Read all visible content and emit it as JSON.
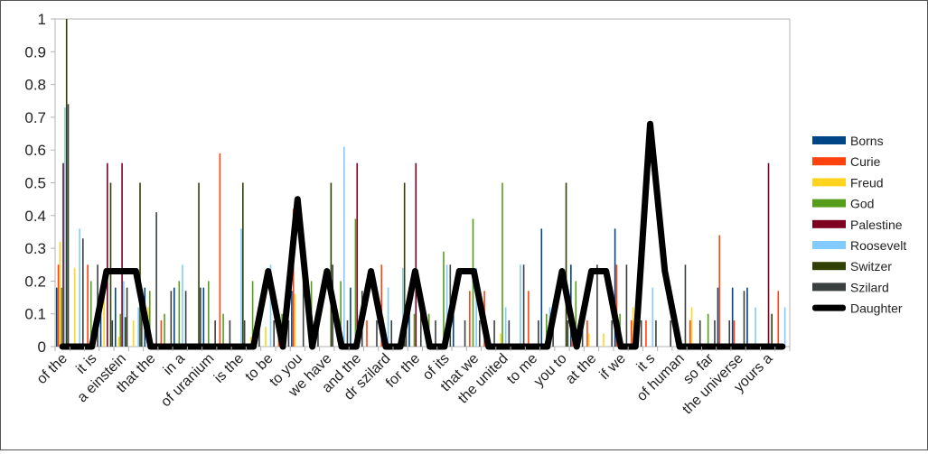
{
  "chart_data": {
    "type": "bar",
    "title": "",
    "xlabel": "",
    "ylabel": "",
    "ylim": [
      0,
      1
    ],
    "yticks": [
      "0",
      "0.1",
      "0.2",
      "0.3",
      "0.4",
      "0.5",
      "0.6",
      "0.7",
      "0.8",
      "0.9",
      "1"
    ],
    "grid": false,
    "legend_position": "right",
    "category_count": 50,
    "x_tick_labels": [
      "of the",
      "it is",
      "a einstein",
      "that the",
      "in a",
      "of uranium",
      "is the",
      "to be",
      "to you",
      "we have",
      "and the",
      "dr szilard",
      "for the",
      "of its",
      "that we",
      "the united",
      "to me",
      "you to",
      "at the",
      "if we",
      "it s",
      "of human",
      "so far",
      "the universe",
      "yours a"
    ],
    "series": [
      {
        "name": "Borns",
        "color": "#004586",
        "values": [
          0.18,
          0,
          0,
          0.17,
          0.18,
          0,
          0.18,
          0,
          0.18,
          0,
          0.18,
          0,
          0,
          0,
          0,
          0,
          0.17,
          0,
          0,
          0,
          0.18,
          0,
          0,
          0,
          0.18,
          0,
          0,
          0.18,
          0,
          0,
          0,
          0,
          0,
          0.36,
          0,
          0.25,
          0,
          0,
          0.36,
          0,
          0,
          0,
          0,
          0,
          0,
          0.18,
          0.18,
          0.18,
          0,
          0
        ]
      },
      {
        "name": "Curie",
        "color": "#ff420e",
        "values": [
          0.25,
          0,
          0.25,
          0,
          0,
          0,
          0,
          0.08,
          0,
          0,
          0,
          0.59,
          0,
          0,
          0,
          0.08,
          0.42,
          0,
          0,
          0,
          0,
          0.08,
          0.25,
          0,
          0,
          0,
          0,
          0,
          0.17,
          0.17,
          0,
          0,
          0.17,
          0,
          0,
          0.08,
          0.08,
          0,
          0.25,
          0.08,
          0.08,
          0,
          0,
          0.08,
          0,
          0.34,
          0.08,
          0,
          0,
          0.17
        ]
      },
      {
        "name": "Freud",
        "color": "#ffd320",
        "values": [
          0.32,
          0.24,
          0,
          0.2,
          0.03,
          0.08,
          0.12,
          0,
          0,
          0,
          0,
          0,
          0,
          0.03,
          0.06,
          0.04,
          0.16,
          0,
          0,
          0.08,
          0,
          0,
          0.09,
          0,
          0,
          0.08,
          0,
          0,
          0,
          0,
          0.04,
          0,
          0,
          0,
          0,
          0,
          0.04,
          0.04,
          0,
          0.12,
          0,
          0,
          0.04,
          0.12,
          0,
          0,
          0,
          0,
          0,
          0
        ]
      },
      {
        "name": "God",
        "color": "#579d1c",
        "values": [
          0.18,
          0,
          0.2,
          0,
          0.1,
          0,
          0.17,
          0.1,
          0.2,
          0,
          0.2,
          0.1,
          0,
          0.2,
          0,
          0.1,
          0,
          0.2,
          0,
          0.2,
          0.39,
          0,
          0,
          0,
          0.1,
          0.1,
          0.29,
          0,
          0.39,
          0,
          0.5,
          0,
          0,
          0.1,
          0,
          0.2,
          0,
          0,
          0.1,
          0,
          0,
          0,
          0,
          0,
          0.1,
          0,
          0,
          0,
          0,
          0
        ]
      },
      {
        "name": "Palestine",
        "color": "#7e0021",
        "values": [
          0.56,
          0,
          0,
          0.56,
          0.56,
          0,
          0,
          0,
          0,
          0,
          0,
          0,
          0,
          0,
          0,
          0,
          0,
          0,
          0,
          0,
          0.56,
          0,
          0,
          0,
          0.56,
          0,
          0,
          0,
          0,
          0,
          0,
          0,
          0,
          0,
          0,
          0,
          0,
          0,
          0,
          0,
          0,
          0,
          0,
          0,
          0,
          0,
          0,
          0,
          0.56,
          0
        ]
      },
      {
        "name": "Roosevelt",
        "color": "#83caff",
        "values": [
          0.73,
          0.36,
          0,
          0,
          0.2,
          0.12,
          0,
          0,
          0.25,
          0,
          0,
          0,
          0.36,
          0,
          0.25,
          0,
          0,
          0,
          0,
          0.61,
          0,
          0,
          0.18,
          0.24,
          0,
          0,
          0.25,
          0,
          0.24,
          0,
          0.12,
          0.25,
          0,
          0.12,
          0,
          0,
          0,
          0,
          0,
          0,
          0.18,
          0,
          0,
          0,
          0,
          0,
          0,
          0.12,
          0,
          0.12
        ]
      },
      {
        "name": "Switzer",
        "color": "#314004",
        "values": [
          1.0,
          0,
          0,
          0.5,
          0.09,
          0.5,
          0,
          0,
          0,
          0.5,
          0,
          0,
          0.5,
          0,
          0,
          0,
          0,
          0,
          0.5,
          0,
          0,
          0,
          0,
          0.5,
          0,
          0,
          0,
          0,
          0,
          0,
          0,
          0,
          0,
          0,
          0.5,
          0,
          0,
          0,
          0,
          0,
          0,
          0,
          0,
          0,
          0,
          0,
          0,
          0,
          0.1,
          0
        ]
      },
      {
        "name": "Szilard",
        "color": "#3a3f3f",
        "values": [
          0.74,
          0.33,
          0.25,
          0.08,
          0.18,
          0.17,
          0.41,
          0.17,
          0.17,
          0.18,
          0.08,
          0.08,
          0.08,
          0.08,
          0.08,
          0.08,
          0.25,
          0.08,
          0.25,
          0.08,
          0.17,
          0.08,
          0.08,
          0.08,
          0.17,
          0.08,
          0.25,
          0.08,
          0.08,
          0.08,
          0.08,
          0.25,
          0.08,
          0.08,
          0.08,
          0.08,
          0.25,
          0.08,
          0.25,
          0.08,
          0.08,
          0.08,
          0.25,
          0.08,
          0.08,
          0.08,
          0.17,
          0,
          0,
          0
        ]
      },
      {
        "name": "Daughter",
        "type": "line",
        "color": "#000000",
        "values": [
          0,
          0,
          0,
          0.23,
          0.23,
          0.23,
          0,
          0,
          0,
          0,
          0,
          0,
          0,
          0,
          0.23,
          0,
          0.45,
          0,
          0.23,
          0,
          0,
          0.23,
          0,
          0,
          0.23,
          0,
          0,
          0.23,
          0.23,
          0,
          0,
          0,
          0,
          0,
          0.23,
          0,
          0.23,
          0.23,
          0,
          0,
          0.68,
          0.23,
          0,
          0,
          0,
          0,
          0,
          0,
          0,
          0
        ]
      }
    ]
  },
  "legend": {
    "items": [
      {
        "label": "Borns",
        "color": "#004586"
      },
      {
        "label": "Curie",
        "color": "#ff420e"
      },
      {
        "label": "Freud",
        "color": "#ffd320"
      },
      {
        "label": "God",
        "color": "#579d1c"
      },
      {
        "label": "Palestine",
        "color": "#7e0021"
      },
      {
        "label": "Roosevelt",
        "color": "#83caff"
      },
      {
        "label": "Switzer",
        "color": "#314004"
      },
      {
        "label": "Szilard",
        "color": "#3a3f3f"
      },
      {
        "label": "Daughter",
        "color": "#000000"
      }
    ]
  }
}
